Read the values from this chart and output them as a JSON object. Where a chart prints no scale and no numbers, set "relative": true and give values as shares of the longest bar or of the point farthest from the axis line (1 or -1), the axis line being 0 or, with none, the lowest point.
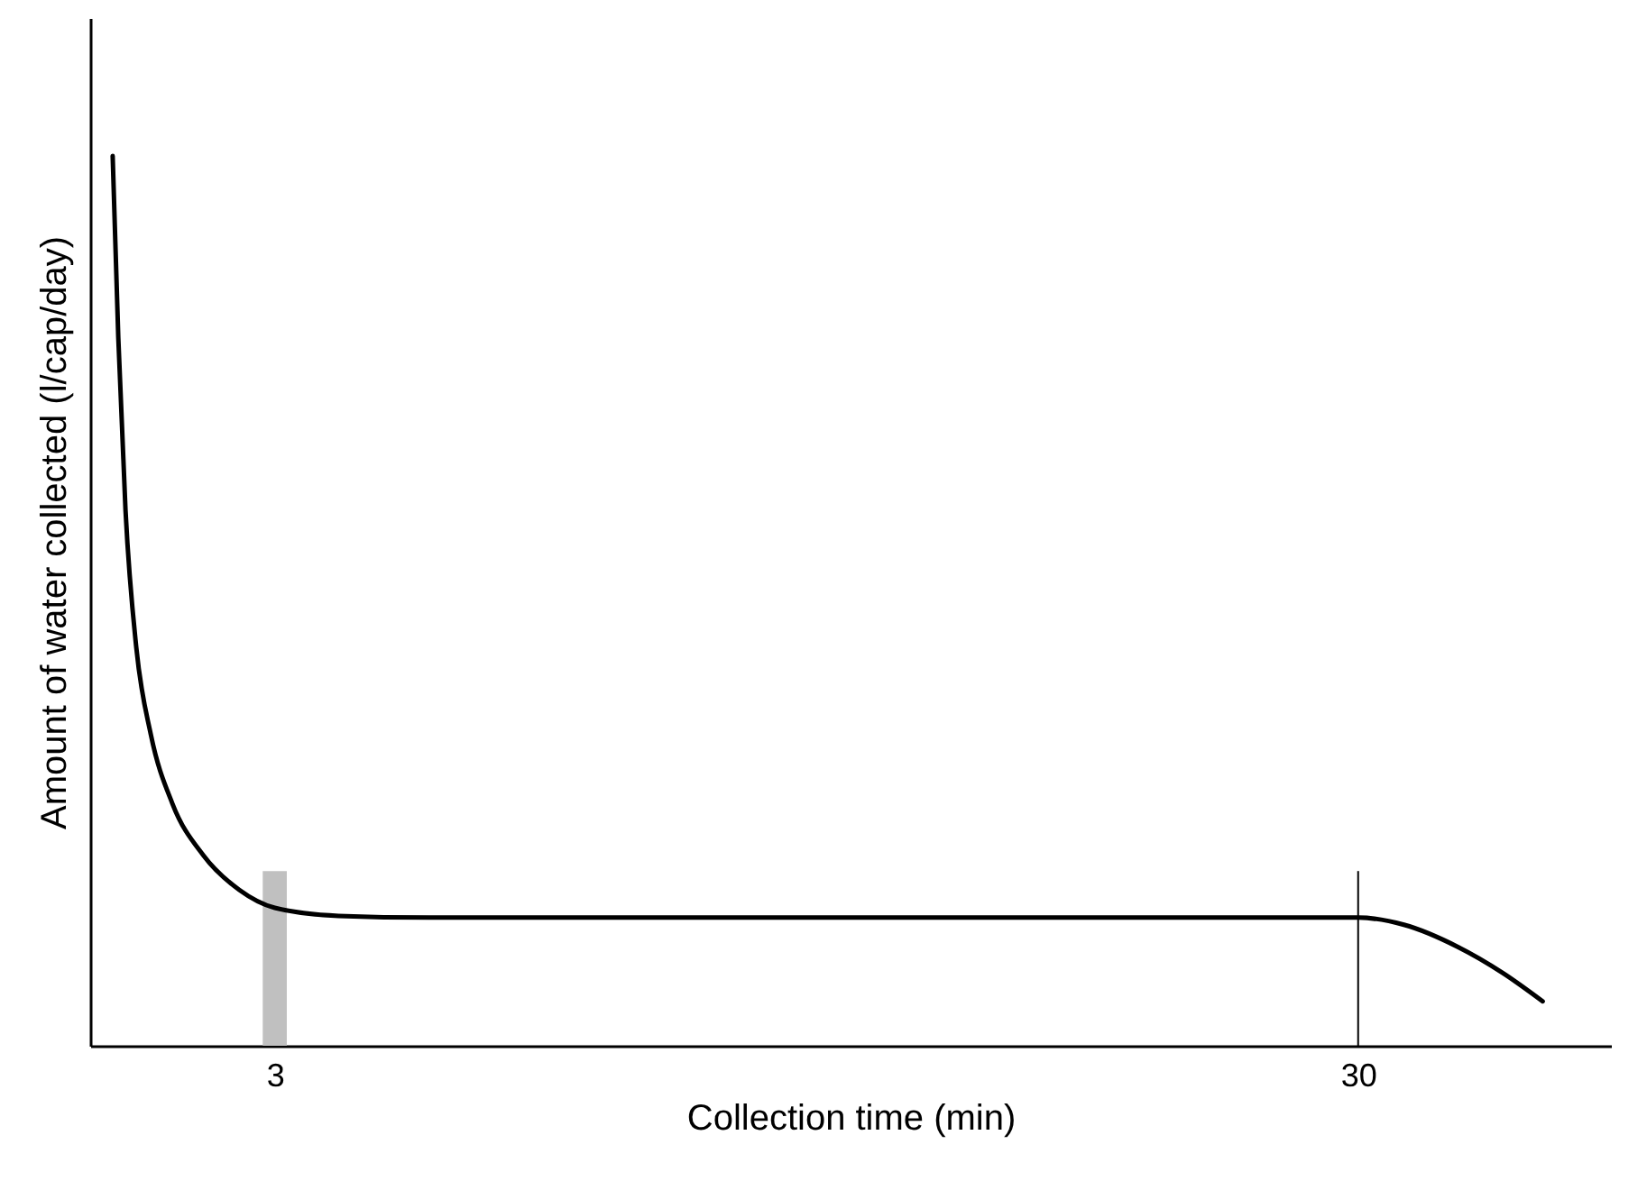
{
  "chart_data": {
    "type": "line",
    "relative": true,
    "xlabel": "Collection time (min)",
    "ylabel": "Amount of water collected (l/cap/day)",
    "x": [
      -1.04,
      -0.9,
      -0.72,
      -0.45,
      -0.09,
      0.45,
      1.22,
      2.12,
      3,
      4.59,
      6.84,
      30,
      31.14,
      32.49,
      33.6,
      34.6
    ],
    "series": [
      {
        "color": "#000000",
        "values": [
          1,
          0.796,
          0.602,
          0.447,
          0.35,
          0.272,
          0.214,
          0.175,
          0.155,
          0.146,
          0.144,
          0.144,
          0.136,
          0.111,
          0.082,
          0.05
        ]
      }
    ],
    "xlim": [
      -1.6,
      36.3
    ],
    "xticks": [
      3,
      30
    ],
    "bands": [
      {
        "axis": "x",
        "from": 2.7,
        "to": 3.3,
        "color": "#c0c0c0"
      }
    ],
    "ref_lines": [
      {
        "axis": "x",
        "value": 30,
        "color": "#000000"
      }
    ],
    "grid": false,
    "marker": "none",
    "line_style": "solid"
  }
}
